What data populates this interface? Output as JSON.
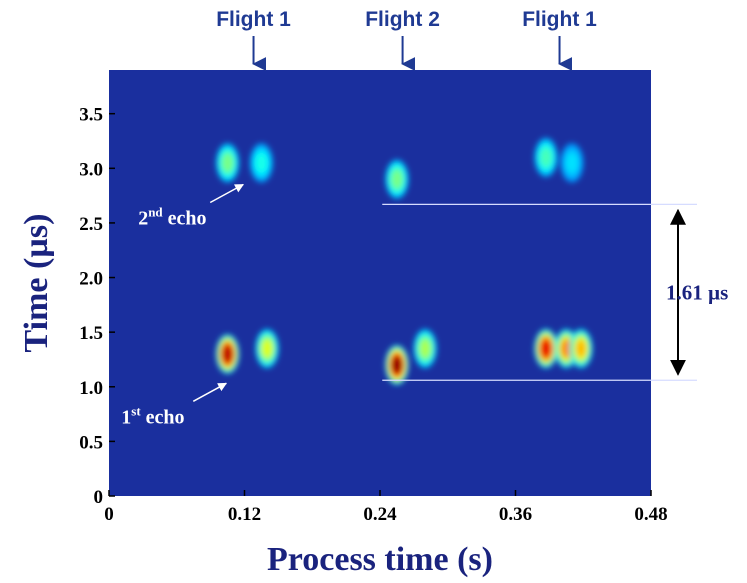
{
  "chart_data": {
    "type": "heatmap",
    "xlabel": "Process time (s)",
    "ylabel": "Time (µs)",
    "xlim": [
      0,
      0.48
    ],
    "ylim": [
      0,
      3.9
    ],
    "x_ticks": [
      "0",
      "0.12",
      "0.24",
      "0.36",
      "0.48"
    ],
    "x_tick_values": [
      0,
      0.12,
      0.24,
      0.36,
      0.48
    ],
    "y_ticks": [
      "0",
      "0.5",
      "1.0",
      "1.5",
      "2.0",
      "2.5",
      "3.0",
      "3.5"
    ],
    "y_tick_values": [
      0,
      0.5,
      1.0,
      1.5,
      2.0,
      2.5,
      3.0,
      3.5
    ],
    "colormap": "jet",
    "background_color": "#1a2f9e",
    "flight_markers": [
      {
        "label": "Flight 1",
        "x": 0.128
      },
      {
        "label": "Flight 2",
        "x": 0.26
      },
      {
        "label": "Flight 1",
        "x": 0.399
      }
    ],
    "blobs": [
      {
        "x": 0.105,
        "y": 1.3,
        "intensity": 0.95
      },
      {
        "x": 0.14,
        "y": 1.35,
        "intensity": 0.6
      },
      {
        "x": 0.255,
        "y": 1.2,
        "intensity": 1.0
      },
      {
        "x": 0.28,
        "y": 1.35,
        "intensity": 0.55
      },
      {
        "x": 0.387,
        "y": 1.35,
        "intensity": 0.9
      },
      {
        "x": 0.405,
        "y": 1.35,
        "intensity": 0.75
      },
      {
        "x": 0.418,
        "y": 1.35,
        "intensity": 0.7
      },
      {
        "x": 0.105,
        "y": 3.05,
        "intensity": 0.5
      },
      {
        "x": 0.135,
        "y": 3.05,
        "intensity": 0.4
      },
      {
        "x": 0.255,
        "y": 2.9,
        "intensity": 0.5
      },
      {
        "x": 0.387,
        "y": 3.1,
        "intensity": 0.45
      },
      {
        "x": 0.41,
        "y": 3.05,
        "intensity": 0.35
      }
    ],
    "annotations": [
      {
        "base": "2",
        "sup": "nd",
        "rest": " echo",
        "x": 0.11,
        "y": 2.87
      },
      {
        "base": "1",
        "sup": "st",
        "rest": " echo",
        "x": 0.095,
        "y": 1.05
      }
    ],
    "reference_lines": [
      2.67,
      1.06
    ],
    "measurement": {
      "label": "1.61 µs",
      "from": 1.06,
      "to": 2.67
    }
  }
}
